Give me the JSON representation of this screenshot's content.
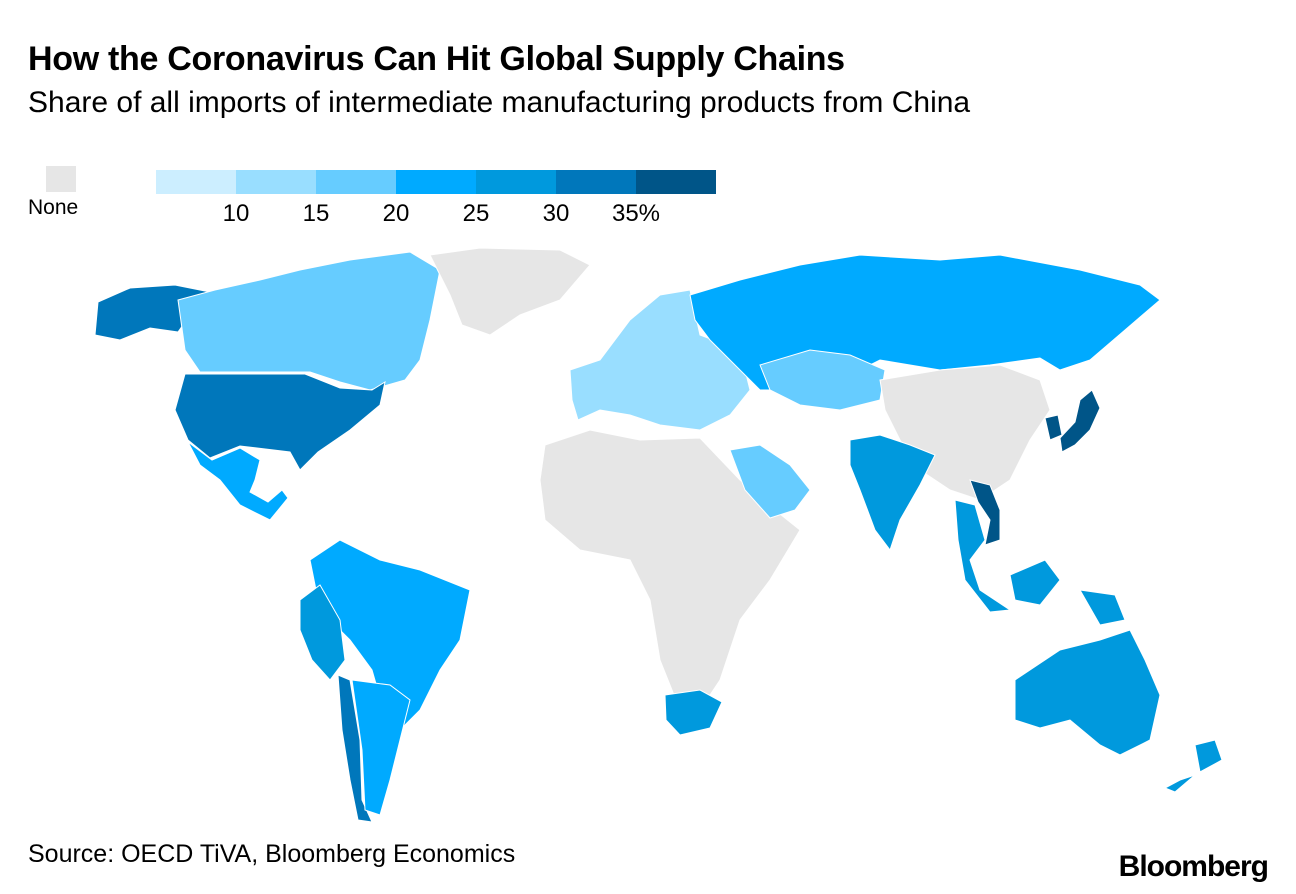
{
  "title": "How the Coronavirus Can Hit Global Supply Chains",
  "subtitle": "Share of all imports of intermediate manufacturing products from China",
  "legend": {
    "none_label": "None",
    "none_color": "#e6e6e6",
    "swatches": [
      "#cceeff",
      "#99deff",
      "#66ccff",
      "#00aaff",
      "#0099dd",
      "#0077bb",
      "#005588"
    ],
    "ticks": [
      "10",
      "15",
      "20",
      "25",
      "30",
      "35%"
    ]
  },
  "source": "Source: OECD TiVA, Bloomberg Economics",
  "logo": "Bloomberg",
  "regions": [
    {
      "name": "Alaska",
      "color": "#0077bb"
    },
    {
      "name": "Canada",
      "color": "#66ccff"
    },
    {
      "name": "United States",
      "color": "#0077bb"
    },
    {
      "name": "Mexico",
      "color": "#00aaff"
    },
    {
      "name": "Greenland",
      "color": "#e6e6e6"
    },
    {
      "name": "South America north",
      "color": "#00aaff"
    },
    {
      "name": "Peru",
      "color": "#0099dd"
    },
    {
      "name": "Chile",
      "color": "#0077bb"
    },
    {
      "name": "Argentina",
      "color": "#00aaff"
    },
    {
      "name": "Africa",
      "color": "#e6e6e6"
    },
    {
      "name": "South Africa",
      "color": "#0099dd"
    },
    {
      "name": "Europe",
      "color": "#99deff"
    },
    {
      "name": "Russia",
      "color": "#00aaff"
    },
    {
      "name": "Kazakhstan",
      "color": "#66ccff"
    },
    {
      "name": "China",
      "color": "#e6e6e6"
    },
    {
      "name": "India",
      "color": "#0099dd"
    },
    {
      "name": "Saudi Arabia",
      "color": "#66ccff"
    },
    {
      "name": "Japan",
      "color": "#005588"
    },
    {
      "name": "Korea",
      "color": "#005588"
    },
    {
      "name": "Vietnam",
      "color": "#005588"
    },
    {
      "name": "Southeast Asia",
      "color": "#0099dd"
    },
    {
      "name": "Australia",
      "color": "#0099dd"
    },
    {
      "name": "New Zealand",
      "color": "#0099dd"
    }
  ]
}
